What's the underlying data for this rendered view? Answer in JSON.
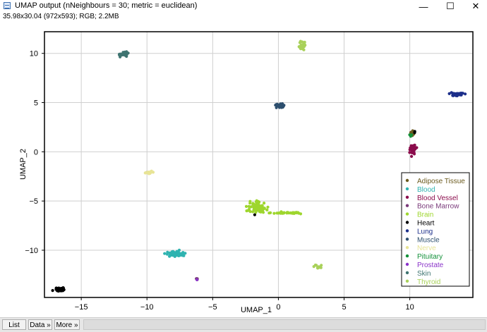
{
  "window": {
    "title": "UMAP output (nNeighbours = 30; metric = euclidean)",
    "info": "35.98x30.04  (972x593); RGB; 2.2MB",
    "minimize_glyph": "—",
    "maximize_glyph": "☐",
    "close_glyph": "✕"
  },
  "buttons": {
    "list": "List",
    "data": "Data »",
    "more": "More »"
  },
  "colors": {
    "Adipose Tissue": "#6b5a1e",
    "Blood": "#2fb3b0",
    "Blood Vessel": "#8b0c4c",
    "Bone Marrow": "#7a3a7a",
    "Brain": "#9ed62e",
    "Heart": "#000000",
    "Lung": "#1c2f8a",
    "Muscle": "#2d4f6e",
    "Nerve": "#e8e496",
    "Pituitary": "#14913a",
    "Prostate": "#8a33c9",
    "Skin": "#3f7471",
    "Thyroid": "#a9d15a"
  },
  "chart_data": {
    "type": "scatter",
    "xlabel": "UMAP_1",
    "ylabel": "UMAP_2",
    "xlim": [
      -17.8,
      14.8
    ],
    "ylim": [
      -14.8,
      12.2
    ],
    "xticks": [
      -15,
      -10,
      -5,
      0,
      5,
      10
    ],
    "yticks": [
      10,
      5,
      0,
      -5,
      -10
    ],
    "grid": true,
    "legend_position": "bottom-right",
    "series": [
      {
        "name": "Adipose Tissue",
        "clusters": [
          {
            "x": 10.2,
            "y": 1.9,
            "sx": 0.15,
            "sy": 0.3,
            "n": 12
          }
        ]
      },
      {
        "name": "Blood",
        "clusters": [
          {
            "x": -7.8,
            "y": -10.4,
            "sx": 0.7,
            "sy": 0.25,
            "n": 60
          }
        ]
      },
      {
        "name": "Blood Vessel",
        "clusters": [
          {
            "x": 10.2,
            "y": 0.2,
            "sx": 0.22,
            "sy": 0.45,
            "n": 45
          }
        ]
      },
      {
        "name": "Bone Marrow",
        "clusters": [
          {
            "x": -6.2,
            "y": -12.9,
            "sx": 0.08,
            "sy": 0.15,
            "n": 4
          }
        ]
      },
      {
        "name": "Brain",
        "clusters": [
          {
            "x": -1.6,
            "y": -5.7,
            "sx": 0.6,
            "sy": 0.55,
            "n": 90
          },
          {
            "x": 0.3,
            "y": -6.2,
            "sx": 0.9,
            "sy": 0.08,
            "n": 25
          },
          {
            "x": 1.3,
            "y": -6.2,
            "sx": 0.5,
            "sy": 0.08,
            "n": 15
          }
        ]
      },
      {
        "name": "Heart",
        "clusters": [
          {
            "x": -16.7,
            "y": -14.0,
            "sx": 0.4,
            "sy": 0.18,
            "n": 50
          },
          {
            "x": 10.3,
            "y": 2.0,
            "sx": 0.1,
            "sy": 0.1,
            "n": 2
          },
          {
            "x": -10.0,
            "y": -2.1,
            "sx": 0.05,
            "sy": 0.05,
            "n": 1
          },
          {
            "x": -1.8,
            "y": -6.4,
            "sx": 0.05,
            "sy": 0.05,
            "n": 1
          }
        ]
      },
      {
        "name": "Lung",
        "clusters": [
          {
            "x": 13.7,
            "y": 5.8,
            "sx": 0.45,
            "sy": 0.15,
            "n": 45
          }
        ]
      },
      {
        "name": "Muscle",
        "clusters": [
          {
            "x": 0.1,
            "y": 4.7,
            "sx": 0.45,
            "sy": 0.2,
            "n": 45
          }
        ]
      },
      {
        "name": "Nerve",
        "clusters": [
          {
            "x": -9.9,
            "y": -2.1,
            "sx": 0.35,
            "sy": 0.15,
            "n": 18
          }
        ]
      },
      {
        "name": "Pituitary",
        "clusters": [
          {
            "x": 10.1,
            "y": 1.7,
            "sx": 0.1,
            "sy": 0.15,
            "n": 5
          }
        ]
      },
      {
        "name": "Prostate",
        "clusters": [
          {
            "x": -6.2,
            "y": -13.0,
            "sx": 0.05,
            "sy": 0.05,
            "n": 1
          }
        ]
      },
      {
        "name": "Skin",
        "clusters": [
          {
            "x": -11.8,
            "y": 9.9,
            "sx": 0.3,
            "sy": 0.3,
            "n": 30
          }
        ]
      },
      {
        "name": "Thyroid",
        "clusters": [
          {
            "x": 1.8,
            "y": 10.8,
            "sx": 0.25,
            "sy": 0.35,
            "n": 30
          },
          {
            "x": 3.0,
            "y": -11.7,
            "sx": 0.3,
            "sy": 0.2,
            "n": 14
          }
        ]
      }
    ]
  }
}
